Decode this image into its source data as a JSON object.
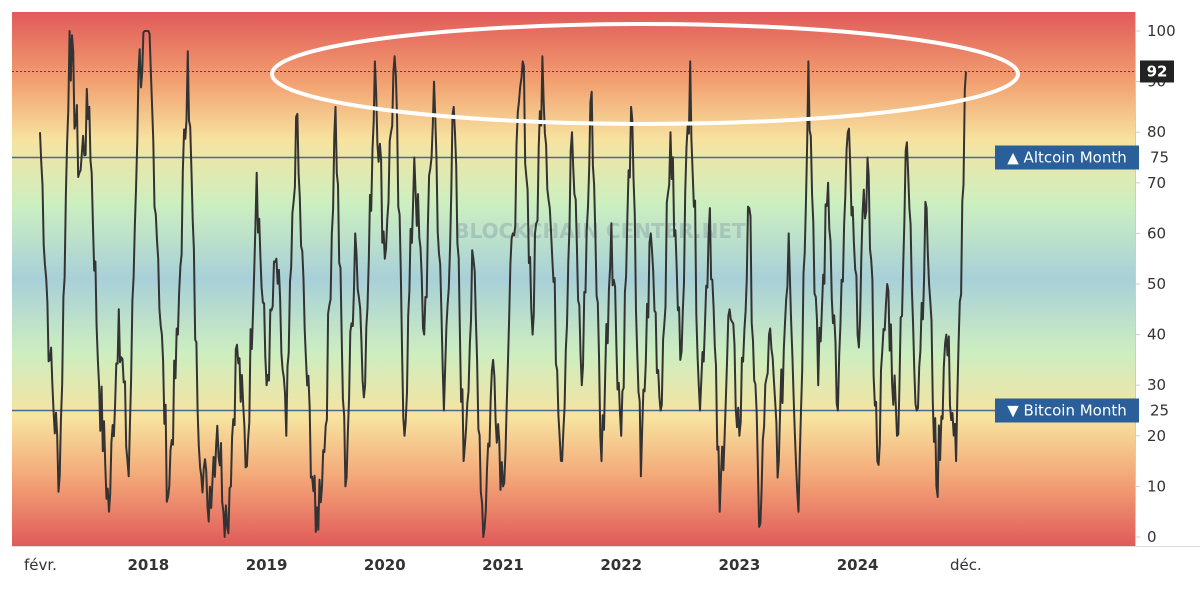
{
  "chart_data": {
    "type": "line",
    "title": "",
    "xlabel": "",
    "ylabel": "",
    "ylim": [
      0,
      100
    ],
    "y_ticks": [
      0,
      10,
      20,
      30,
      40,
      50,
      60,
      70,
      80,
      90,
      100
    ],
    "x_labels": [
      {
        "text": "févr.",
        "date": "2017-02",
        "bold": false
      },
      {
        "text": "2018",
        "date": "2018-01",
        "bold": true
      },
      {
        "text": "2019",
        "date": "2019-01",
        "bold": true
      },
      {
        "text": "2020",
        "date": "2020-01",
        "bold": true
      },
      {
        "text": "2021",
        "date": "2021-01",
        "bold": true
      },
      {
        "text": "2022",
        "date": "2022-01",
        "bold": true
      },
      {
        "text": "2023",
        "date": "2023-01",
        "bold": true
      },
      {
        "text": "2024",
        "date": "2024-01",
        "bold": true
      },
      {
        "text": "déc.",
        "date": "2024-12",
        "bold": false
      }
    ],
    "thresholds": [
      {
        "label": "▲ Altcoin Month",
        "value": 75
      },
      {
        "label": "▼ Bitcoin Month",
        "value": 25
      }
    ],
    "current_value": 92,
    "current_value_label": "92",
    "watermark": "BLOCKCHAIN CENTER.NET",
    "series": [
      {
        "values": [
          [
            "2017-02",
            80
          ],
          [
            "2017-03",
            35
          ],
          [
            "2017-04",
            12
          ],
          [
            "2017-05",
            100
          ],
          [
            "2017-06",
            72
          ],
          [
            "2017-07",
            85
          ],
          [
            "2017-08",
            30
          ],
          [
            "2017-09",
            5
          ],
          [
            "2017-10",
            45
          ],
          [
            "2017-11",
            12
          ],
          [
            "2017-12",
            92
          ],
          [
            "2018-01",
            100
          ],
          [
            "2018-02",
            55
          ],
          [
            "2018-03",
            8
          ],
          [
            "2018-04",
            40
          ],
          [
            "2018-05",
            96
          ],
          [
            "2018-06",
            25
          ],
          [
            "2018-07",
            6
          ],
          [
            "2018-08",
            22
          ],
          [
            "2018-09",
            2
          ],
          [
            "2018-10",
            38
          ],
          [
            "2018-11",
            14
          ],
          [
            "2018-12",
            72
          ],
          [
            "2019-01",
            30
          ],
          [
            "2019-02",
            55
          ],
          [
            "2019-03",
            20
          ],
          [
            "2019-04",
            83
          ],
          [
            "2019-05",
            35
          ],
          [
            "2019-06",
            1
          ],
          [
            "2019-07",
            22
          ],
          [
            "2019-08",
            85
          ],
          [
            "2019-09",
            10
          ],
          [
            "2019-10",
            60
          ],
          [
            "2019-11",
            30
          ],
          [
            "2019-12",
            94
          ],
          [
            "2020-01",
            55
          ],
          [
            "2020-02",
            95
          ],
          [
            "2020-03",
            20
          ],
          [
            "2020-04",
            75
          ],
          [
            "2020-05",
            40
          ],
          [
            "2020-06",
            90
          ],
          [
            "2020-07",
            25
          ],
          [
            "2020-08",
            85
          ],
          [
            "2020-09",
            15
          ],
          [
            "2020-10",
            55
          ],
          [
            "2020-11",
            0
          ],
          [
            "2020-12",
            35
          ],
          [
            "2021-01",
            10
          ],
          [
            "2021-02",
            60
          ],
          [
            "2021-03",
            94
          ],
          [
            "2021-04",
            40
          ],
          [
            "2021-05",
            95
          ],
          [
            "2021-06",
            55
          ],
          [
            "2021-07",
            15
          ],
          [
            "2021-08",
            80
          ],
          [
            "2021-09",
            30
          ],
          [
            "2021-10",
            88
          ],
          [
            "2021-11",
            15
          ],
          [
            "2021-12",
            62
          ],
          [
            "2022-01",
            20
          ],
          [
            "2022-02",
            85
          ],
          [
            "2022-03",
            12
          ],
          [
            "2022-04",
            60
          ],
          [
            "2022-05",
            25
          ],
          [
            "2022-06",
            80
          ],
          [
            "2022-07",
            35
          ],
          [
            "2022-08",
            94
          ],
          [
            "2022-09",
            25
          ],
          [
            "2022-10",
            65
          ],
          [
            "2022-11",
            5
          ],
          [
            "2022-12",
            45
          ],
          [
            "2023-01",
            20
          ],
          [
            "2023-02",
            65
          ],
          [
            "2023-03",
            2
          ],
          [
            "2023-04",
            40
          ],
          [
            "2023-05",
            15
          ],
          [
            "2023-06",
            60
          ],
          [
            "2023-07",
            5
          ],
          [
            "2023-08",
            94
          ],
          [
            "2023-09",
            30
          ],
          [
            "2023-10",
            70
          ],
          [
            "2023-11",
            25
          ],
          [
            "2023-12",
            80
          ],
          [
            "2024-01",
            40
          ],
          [
            "2024-02",
            75
          ],
          [
            "2024-03",
            15
          ],
          [
            "2024-04",
            50
          ],
          [
            "2024-05",
            20
          ],
          [
            "2024-06",
            78
          ],
          [
            "2024-07",
            25
          ],
          [
            "2024-08",
            65
          ],
          [
            "2024-09",
            10
          ],
          [
            "2024-10",
            40
          ],
          [
            "2024-11",
            15
          ],
          [
            "2024-12",
            92
          ]
        ]
      }
    ],
    "colors": {
      "line": "#333333",
      "threshold_line": "#4a6a90",
      "badge": "#2a5f9a",
      "current_badge": "#222222",
      "annotation": "#ffffff",
      "bands": [
        "#e15a5a",
        "#f2a070",
        "#f7e3a0",
        "#ccefc0",
        "#a8d0d8",
        "#cdeec0",
        "#f7e3a0",
        "#f3a878",
        "#e15a5a"
      ]
    }
  }
}
